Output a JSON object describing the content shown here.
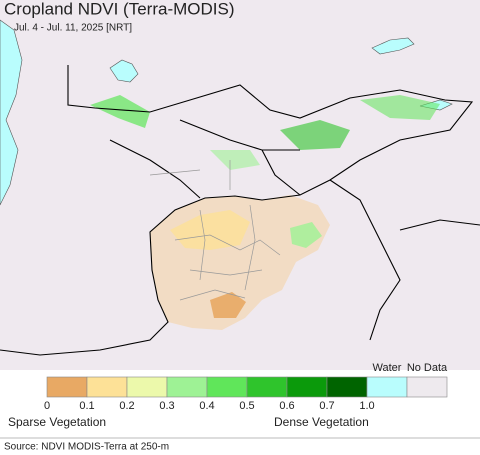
{
  "title": "Cropland NDVI (Terra-MODIS)",
  "subtitle": "Jul. 4 - Jul. 11, 2025 [NRT]",
  "legend": {
    "colors": [
      "#e8a964",
      "#fde197",
      "#ecf9ab",
      "#9ef295",
      "#60e65a",
      "#2fc42c",
      "#0b9a0b",
      "#006400"
    ],
    "ticks": [
      "0",
      "0.1",
      "0.2",
      "0.3",
      "0.4",
      "0.5",
      "0.6",
      "0.7",
      "1.0"
    ],
    "water_label": "Water",
    "water_color": "#b9fdfd",
    "nodata_label": "No Data",
    "nodata_color": "#eeeaee",
    "low_label": "Sparse Vegetation",
    "high_label": "Dense Vegetation"
  },
  "source": "Source: NDVI MODIS-Terra at 250-m"
}
